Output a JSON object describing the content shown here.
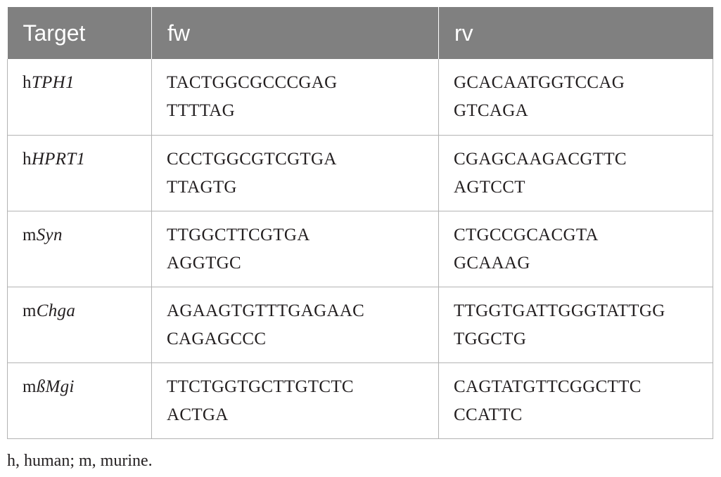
{
  "table": {
    "headers": {
      "target": "Target",
      "fw": "fw",
      "rv": "rv"
    },
    "rows": [
      {
        "target_prefix": "h",
        "target_gene": "TPH1",
        "fw": [
          "TACTGGCGCCCGAG",
          "TTTTAG"
        ],
        "rv": [
          "GCACAATGGTCCAG",
          "GTCAGA"
        ]
      },
      {
        "target_prefix": "h",
        "target_gene": "HPRT1",
        "fw": [
          "CCCTGGCGTCGTGA",
          "TTAGTG"
        ],
        "rv": [
          "CGAGCAAGACGTTC",
          "AGTCCT"
        ]
      },
      {
        "target_prefix": "m",
        "target_gene": "Syn",
        "fw": [
          "TTGGCTTCGTGA",
          "AGGTGC"
        ],
        "rv": [
          "CTGCCGCACGTA",
          "GCAAAG"
        ]
      },
      {
        "target_prefix": "m",
        "target_gene": "Chga",
        "fw": [
          "AGAAGTGTTTGAGAAC",
          "CAGAGCCC"
        ],
        "rv": [
          "TTGGTGATTGGGTATTGG",
          "TGGCTG"
        ]
      },
      {
        "target_prefix": "m",
        "target_gene": "ßMgi",
        "fw": [
          "TTCTGGTGCTTGTCTC",
          "ACTGA"
        ],
        "rv": [
          "CAGTATGTTCGGCTTC",
          "CCATTC"
        ]
      }
    ]
  },
  "footnote": "h, human; m, murine."
}
